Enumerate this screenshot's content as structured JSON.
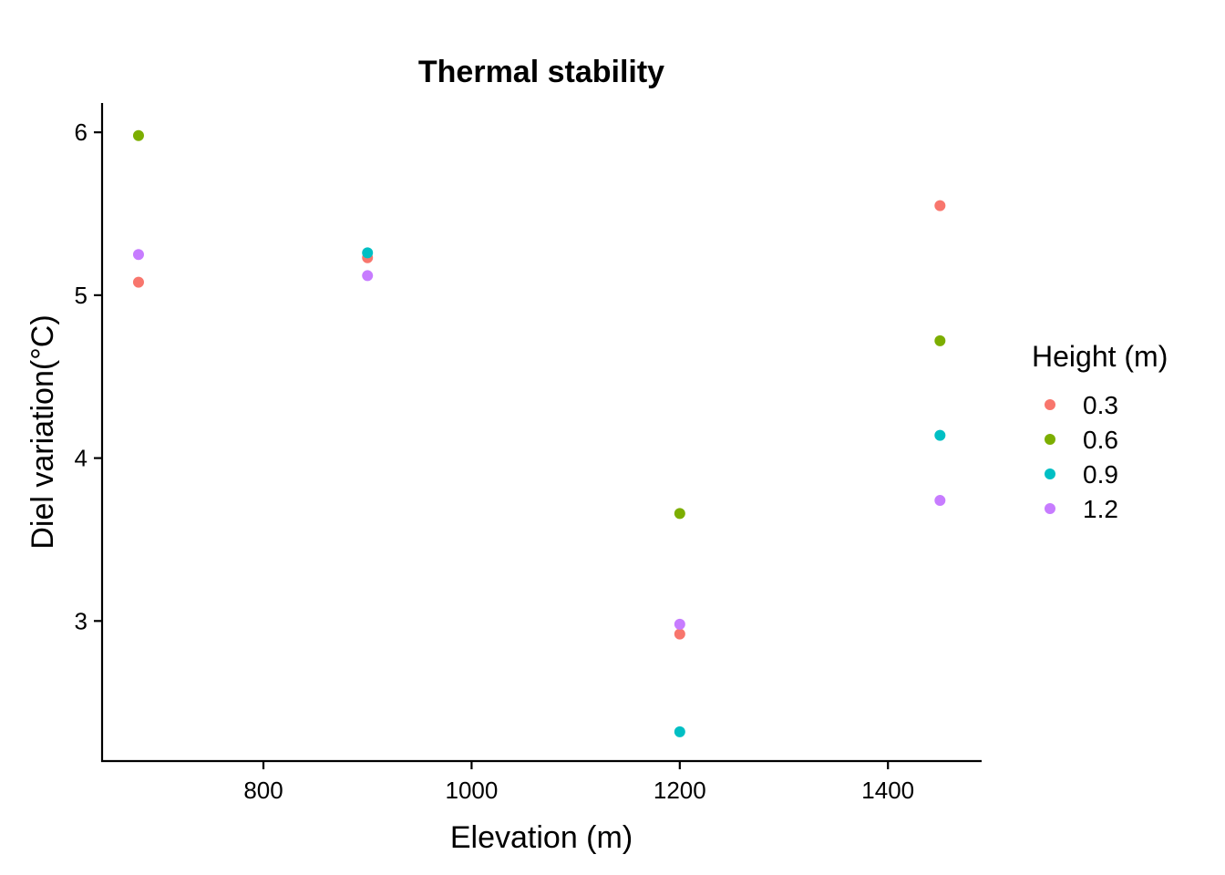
{
  "chart_data": {
    "type": "scatter",
    "title": "Thermal stability",
    "xlabel": "Elevation (m)",
    "ylabel": "Diel variation(°C)",
    "xlim": [
      645,
      1490
    ],
    "ylim": [
      2.14,
      6.18
    ],
    "x_ticks": [
      800,
      1000,
      1200,
      1400
    ],
    "y_ticks": [
      3,
      4,
      5,
      6
    ],
    "grid": false,
    "legend": {
      "title": "Height (m)",
      "position": "right"
    },
    "series": [
      {
        "name": "0.3",
        "color": "#F8766D",
        "points": [
          {
            "x": 680,
            "y": 5.08
          },
          {
            "x": 900,
            "y": 5.23
          },
          {
            "x": 1200,
            "y": 2.92
          },
          {
            "x": 1450,
            "y": 5.55
          }
        ]
      },
      {
        "name": "0.6",
        "color": "#7CAE00",
        "points": [
          {
            "x": 680,
            "y": 5.98
          },
          {
            "x": 1200,
            "y": 3.66
          },
          {
            "x": 1450,
            "y": 4.72
          }
        ]
      },
      {
        "name": "0.9",
        "color": "#00BFC4",
        "points": [
          {
            "x": 900,
            "y": 5.26
          },
          {
            "x": 1200,
            "y": 2.32
          },
          {
            "x": 1450,
            "y": 4.14
          }
        ]
      },
      {
        "name": "1.2",
        "color": "#C77CFF",
        "points": [
          {
            "x": 680,
            "y": 5.25
          },
          {
            "x": 900,
            "y": 5.12
          },
          {
            "x": 1200,
            "y": 2.98
          },
          {
            "x": 1450,
            "y": 3.74
          }
        ]
      }
    ]
  }
}
